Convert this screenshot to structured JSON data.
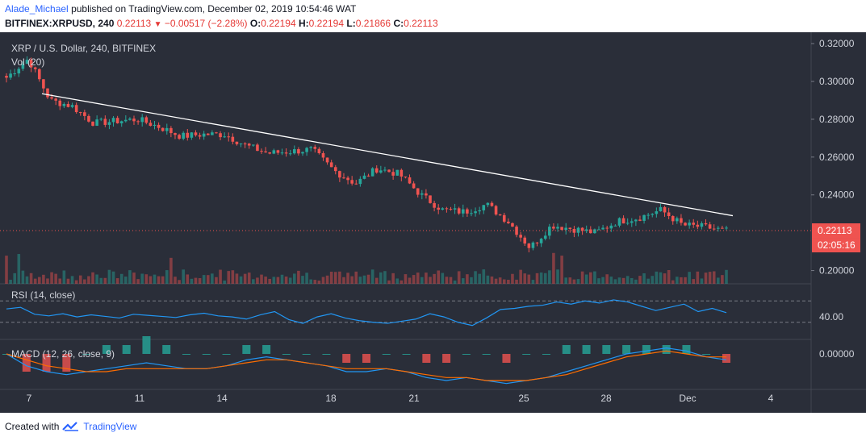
{
  "header": {
    "user": "Alade_Michael",
    "published": "published on TradingView.com, December 02, 2019 10:54:46 WAT",
    "symbol": "BITFINEX:XRPUSD, 240",
    "last": "0.22113",
    "change_arrow": "▼",
    "change": "−0.00517 (−2.28%)",
    "o_label": "O:",
    "o": "0.22194",
    "h_label": "H:",
    "h": "0.22194",
    "l_label": "L:",
    "l": "0.21866",
    "c_label": "C:",
    "c": "0.22113"
  },
  "footer": {
    "created_with": "Created with",
    "brand": "TradingView",
    "logo_icon": "tradingview-logo-icon"
  },
  "colors": {
    "background": "#2a2e39",
    "up": "#26a69a",
    "down": "#ef5350",
    "trendline": "#ffffff",
    "rsi": "#2196f3",
    "signal": "#ff6d00"
  },
  "chart_data": {
    "type": "candlestick",
    "title": "XRP / U.S. Dollar, 240, BITFINEX",
    "volume_label": "Vol (20)",
    "price_axis": {
      "ticks": [
        "0.32000",
        "0.30000",
        "0.28000",
        "0.26000",
        "0.24000",
        "0.20000"
      ],
      "ylim": [
        0.193,
        0.326
      ]
    },
    "last_price_label": "0.22113",
    "countdown_label": "02:05:16",
    "x_ticks": [
      "7",
      "11",
      "14",
      "18",
      "21",
      "25",
      "28",
      "Dec",
      "4"
    ],
    "trendline": {
      "start": [
        "7",
        0.2935
      ],
      "end": [
        "Dec 2",
        0.229
      ]
    },
    "price_path": [
      [
        "Nov 7",
        0.302
      ],
      [
        "Nov 7",
        0.312
      ],
      [
        "Nov 7",
        0.29
      ],
      [
        "Nov 8",
        0.287
      ],
      [
        "Nov 8",
        0.278
      ],
      [
        "Nov 9",
        0.279
      ],
      [
        "Nov 10",
        0.28
      ],
      [
        "Nov 11",
        0.276
      ],
      [
        "Nov 12",
        0.271
      ],
      [
        "Nov 13",
        0.272
      ],
      [
        "Nov 14",
        0.272
      ],
      [
        "Nov 15",
        0.266
      ],
      [
        "Nov 16",
        0.262
      ],
      [
        "Nov 17",
        0.263
      ],
      [
        "Nov 18",
        0.264
      ],
      [
        "Nov 19",
        0.253
      ],
      [
        "Nov 19",
        0.246
      ],
      [
        "Nov 20",
        0.254
      ],
      [
        "Nov 21",
        0.251
      ],
      [
        "Nov 22",
        0.24
      ],
      [
        "Nov 22",
        0.232
      ],
      [
        "Nov 23",
        0.231
      ],
      [
        "Nov 24",
        0.235
      ],
      [
        "Nov 24",
        0.226
      ],
      [
        "Nov 25",
        0.212
      ],
      [
        "Nov 25",
        0.224
      ],
      [
        "Nov 26",
        0.222
      ],
      [
        "Nov 27",
        0.22
      ],
      [
        "Nov 28",
        0.226
      ],
      [
        "Nov 29",
        0.228
      ],
      [
        "Nov 30",
        0.232
      ],
      [
        "Dec 1",
        0.224
      ],
      [
        "Dec 1",
        0.223
      ],
      [
        "Dec 2",
        0.221
      ]
    ],
    "rsi": {
      "label": "RSI (14, close)",
      "tick": "40.00",
      "levels": [
        70,
        30
      ],
      "values": [
        55,
        58,
        45,
        42,
        46,
        40,
        44,
        41,
        38,
        45,
        43,
        41,
        39,
        44,
        47,
        42,
        40,
        36,
        44,
        50,
        35,
        28,
        40,
        46,
        38,
        33,
        30,
        28,
        32,
        36,
        46,
        40,
        30,
        24,
        38,
        54,
        56,
        60,
        62,
        68,
        64,
        70,
        66,
        72,
        68,
        60,
        52,
        58,
        64,
        50,
        56,
        48
      ]
    },
    "macd": {
      "label": "MACD (12, 26, close, 9)",
      "tick": "0.00000",
      "macd_values": [
        0.0,
        -0.004,
        -0.006,
        -0.007,
        -0.006,
        -0.005,
        -0.004,
        -0.003,
        -0.004,
        -0.005,
        -0.005,
        -0.004,
        -0.002,
        -0.001,
        -0.002,
        -0.003,
        -0.004,
        -0.006,
        -0.006,
        -0.005,
        -0.006,
        -0.008,
        -0.009,
        -0.008,
        -0.009,
        -0.01,
        -0.009,
        -0.008,
        -0.006,
        -0.004,
        -0.002,
        0.0,
        0.001,
        0.002,
        0.001,
        -0.001,
        -0.002
      ],
      "signal_values": [
        0.0,
        -0.002,
        -0.004,
        -0.005,
        -0.006,
        -0.006,
        -0.005,
        -0.005,
        -0.005,
        -0.005,
        -0.005,
        -0.004,
        -0.003,
        -0.002,
        -0.002,
        -0.003,
        -0.004,
        -0.005,
        -0.005,
        -0.005,
        -0.006,
        -0.007,
        -0.008,
        -0.008,
        -0.009,
        -0.009,
        -0.009,
        -0.008,
        -0.007,
        -0.005,
        -0.003,
        -0.001,
        0.0,
        0.001,
        0.0,
        -0.001,
        -0.001
      ]
    }
  }
}
